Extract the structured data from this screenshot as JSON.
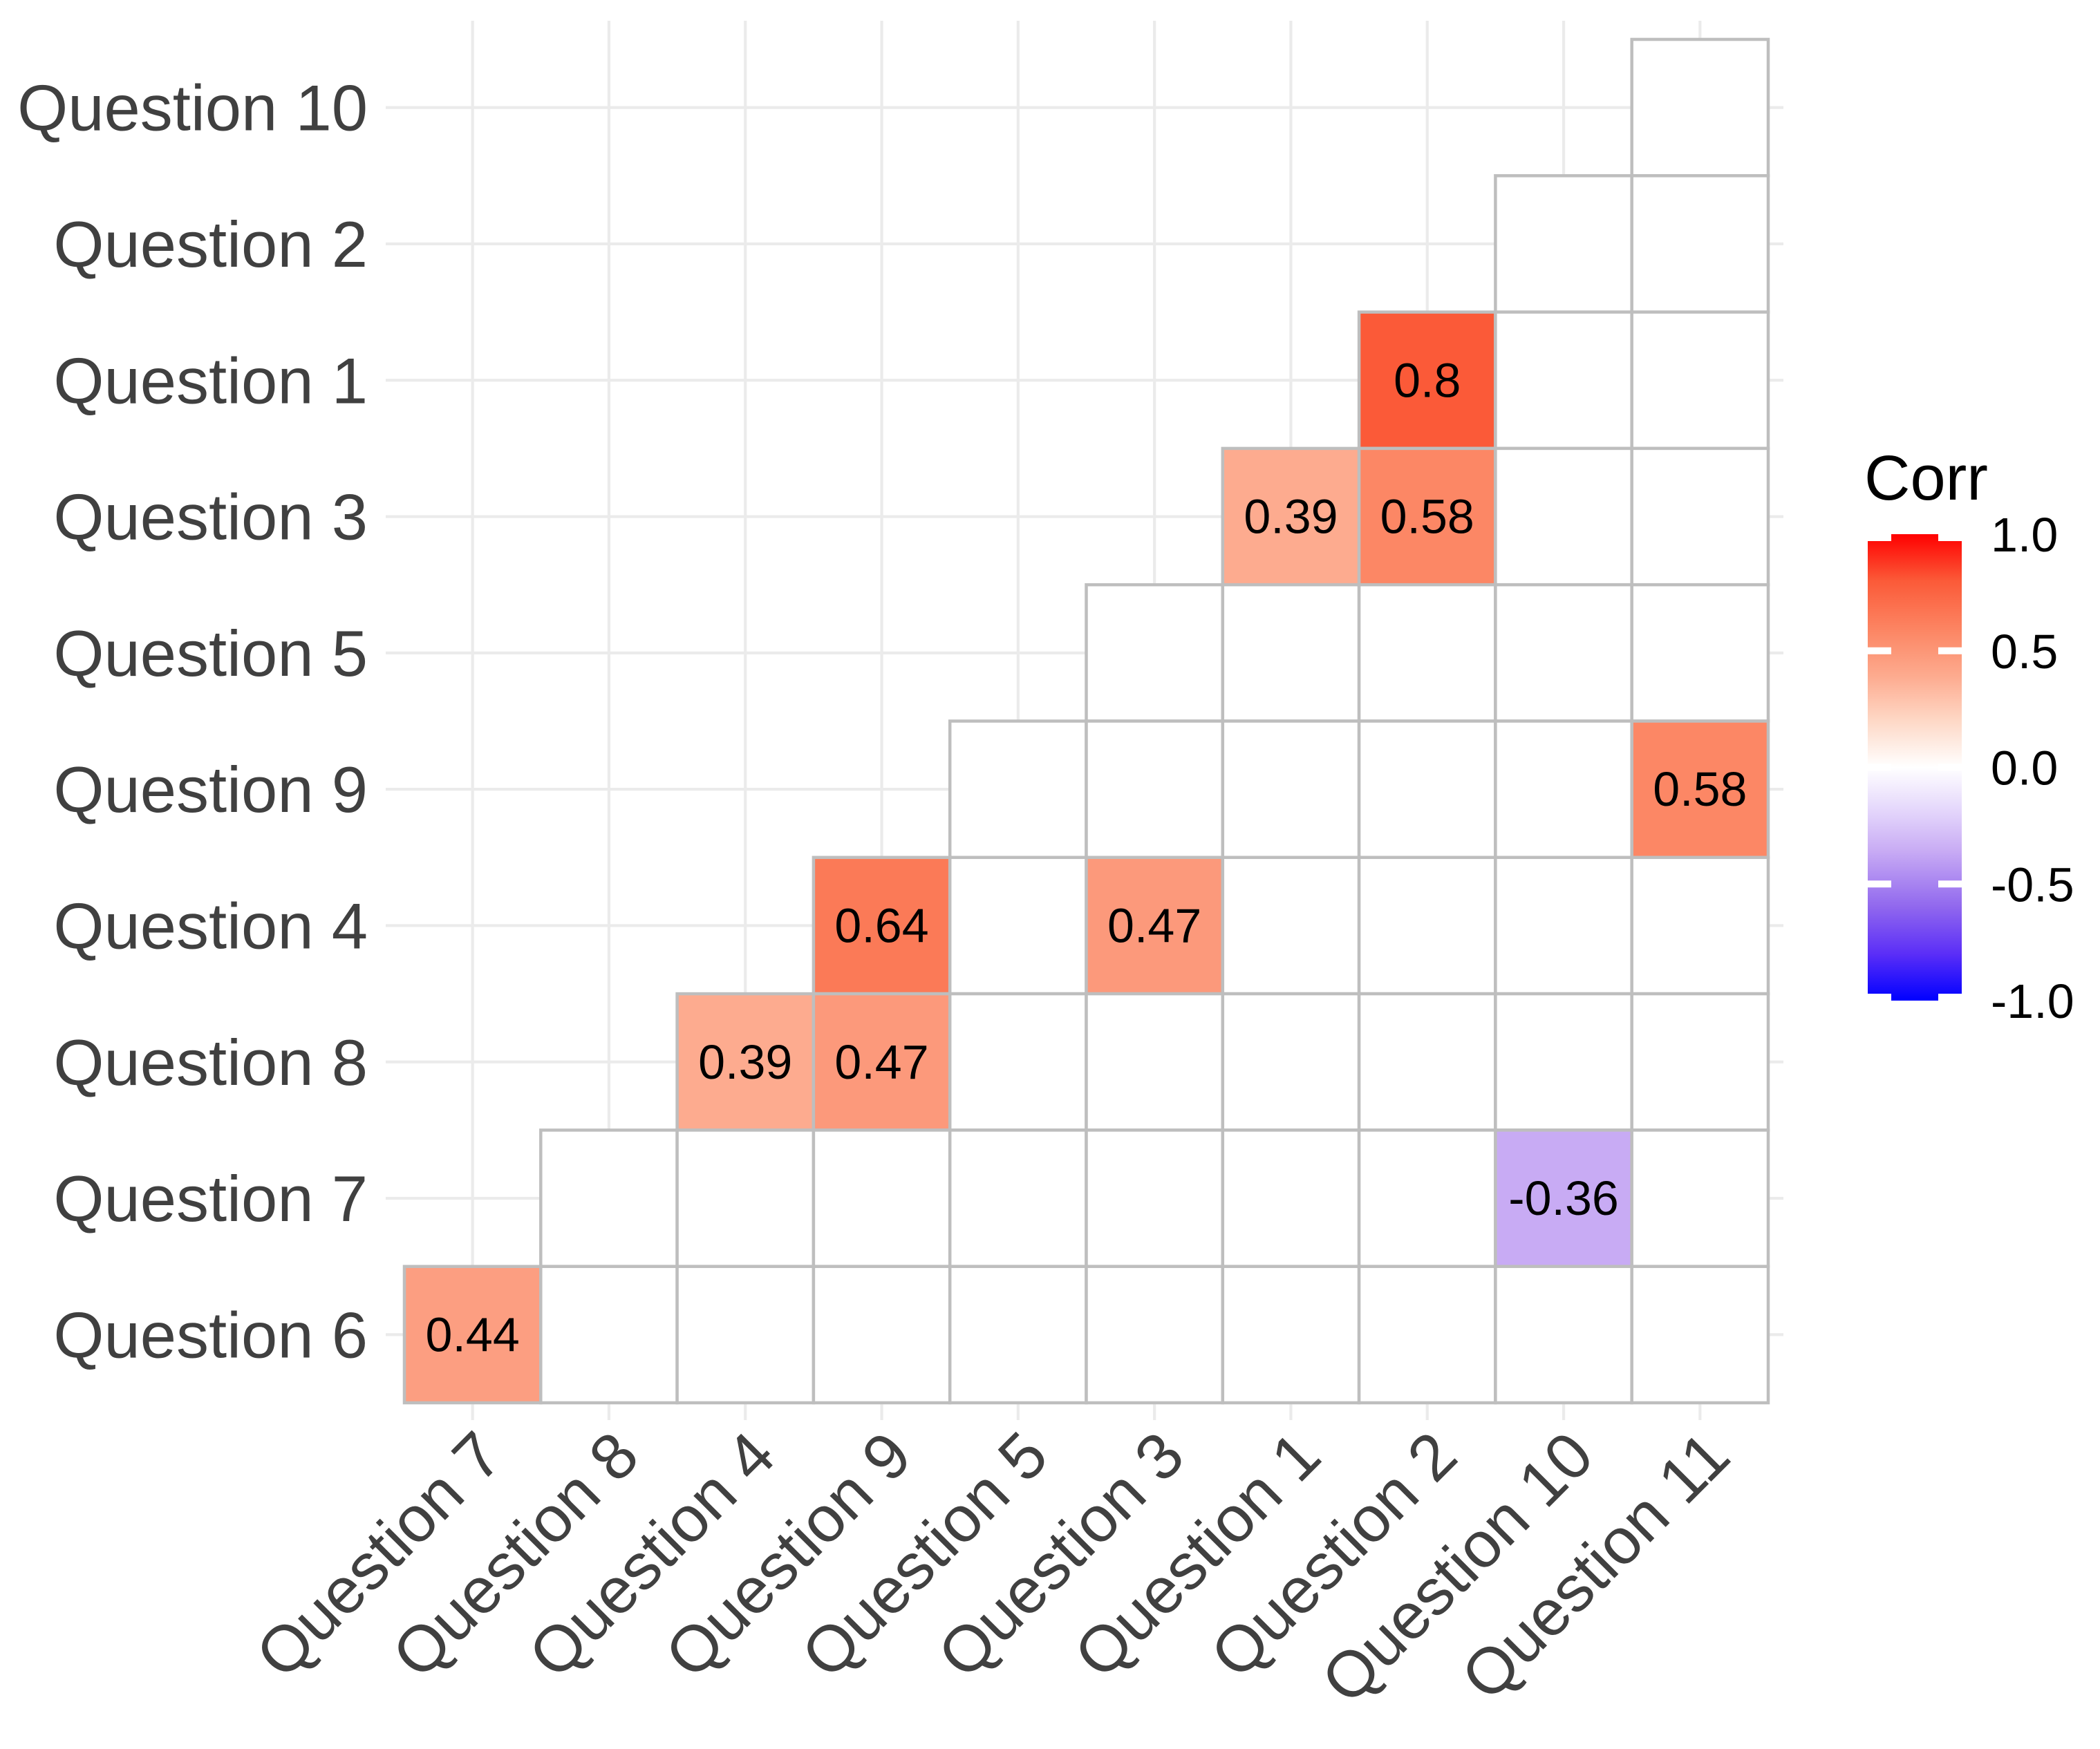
{
  "chart_data": {
    "type": "heatmap",
    "subtype": "correlation-matrix-lower-triangle",
    "title": "",
    "xlabel": "",
    "ylabel": "",
    "x_categories": [
      "Question 7",
      "Question 8",
      "Question 4",
      "Question 9",
      "Question 5",
      "Question 3",
      "Question 1",
      "Question 2",
      "Question 10",
      "Question 11"
    ],
    "y_categories_top_to_bottom": [
      "Question 10",
      "Question 2",
      "Question 1",
      "Question 3",
      "Question 5",
      "Question 9",
      "Question 4",
      "Question 8",
      "Question 7",
      "Question 6"
    ],
    "row_start_col": [
      9,
      8,
      7,
      6,
      5,
      4,
      3,
      2,
      1,
      0
    ],
    "empty_cell_color": "#ffffff",
    "values": [
      {
        "row": "Question 1",
        "col": "Question 2",
        "value": "0.8",
        "color": "#fb5a38"
      },
      {
        "row": "Question 3",
        "col": "Question 1",
        "value": "0.39",
        "color": "#fdab8f"
      },
      {
        "row": "Question 3",
        "col": "Question 2",
        "value": "0.58",
        "color": "#fc8765"
      },
      {
        "row": "Question 9",
        "col": "Question 11",
        "value": "0.58",
        "color": "#fc8765"
      },
      {
        "row": "Question 4",
        "col": "Question 9",
        "value": "0.64",
        "color": "#fb7a57"
      },
      {
        "row": "Question 4",
        "col": "Question 3",
        "value": "0.47",
        "color": "#fc997b"
      },
      {
        "row": "Question 8",
        "col": "Question 4",
        "value": "0.39",
        "color": "#fdab8f"
      },
      {
        "row": "Question 8",
        "col": "Question 9",
        "value": "0.47",
        "color": "#fc997b"
      },
      {
        "row": "Question 7",
        "col": "Question 10",
        "value": "-0.36",
        "color": "#c8abf4"
      },
      {
        "row": "Question 6",
        "col": "Question 7",
        "value": "0.44",
        "color": "#fc9e81"
      }
    ],
    "legend": {
      "title": "Corr",
      "tick_labels": [
        "1.0",
        "0.5",
        "0.0",
        "-0.5",
        "-1.0"
      ],
      "limits": [
        -1.0,
        1.0
      ],
      "position": "right",
      "high_color": "#ff0000",
      "mid_color": "#ffffff",
      "low_color": "#0000ff",
      "gradient_stops": [
        {
          "pos": 0,
          "color": "#ff0000"
        },
        {
          "pos": 10,
          "color": "#fb5a38"
        },
        {
          "pos": 21,
          "color": "#fc8765"
        },
        {
          "pos": 30.5,
          "color": "#fdab8f"
        },
        {
          "pos": 40,
          "color": "#fed8c6"
        },
        {
          "pos": 50,
          "color": "#ffffff"
        },
        {
          "pos": 60,
          "color": "#e2d3fb"
        },
        {
          "pos": 68,
          "color": "#c8abf4"
        },
        {
          "pos": 80,
          "color": "#9067ee"
        },
        {
          "pos": 90,
          "color": "#5b2ef7"
        },
        {
          "pos": 100,
          "color": "#0000ff"
        }
      ]
    },
    "style": {
      "grid_on": true,
      "gridline_color": "#ebebeb",
      "cell_border_color": "#bebebe",
      "axis_text_color": "#404040",
      "value_text_color": "#000000",
      "legend_text_color": "#000000",
      "x_label_rotation_deg": -45
    }
  }
}
